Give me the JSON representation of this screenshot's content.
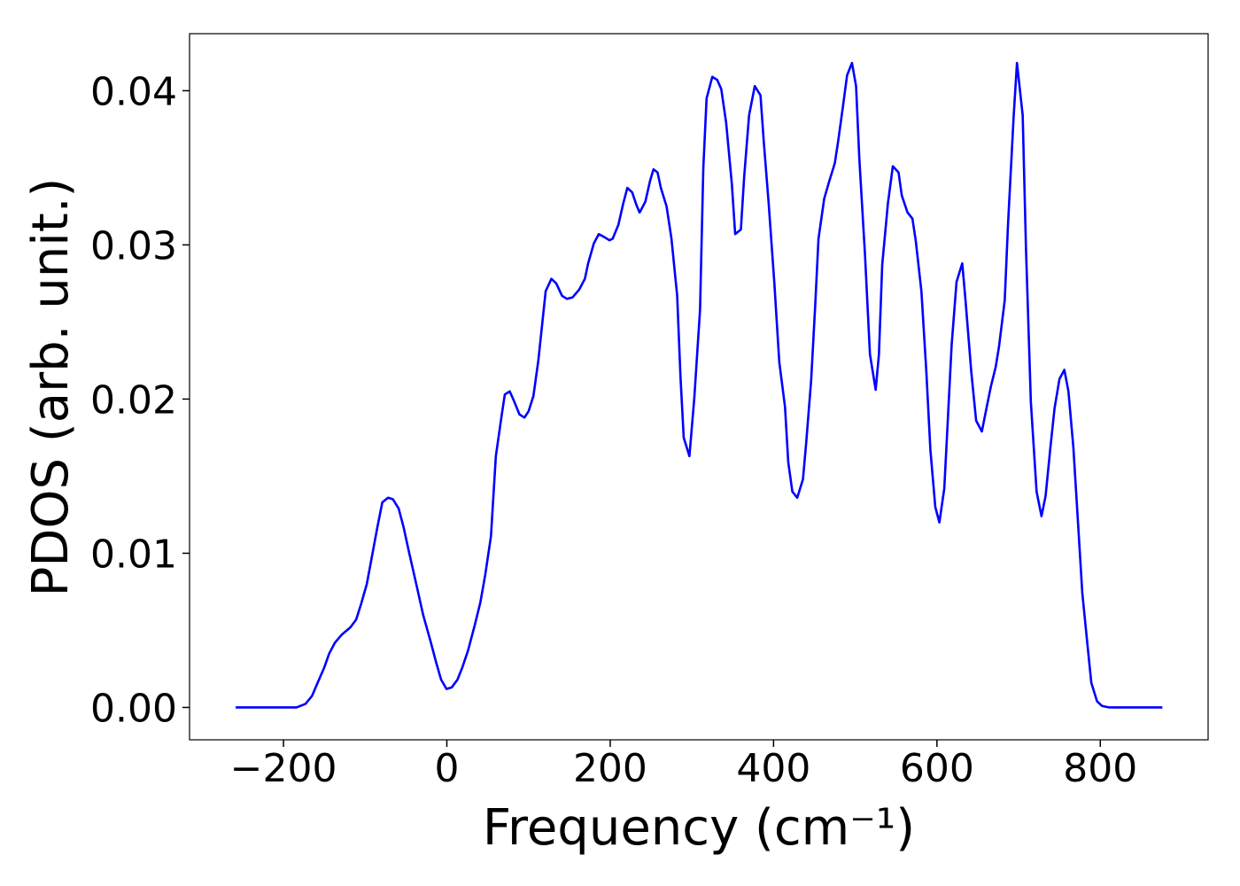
{
  "chart_data": {
    "type": "line",
    "xlabel": "Frequency (cm⁻¹)",
    "ylabel": "PDOS (arb. unit.)",
    "xlim": [
      -315,
      932
    ],
    "ylim": [
      -0.0021,
      0.0437
    ],
    "xticks": [
      {
        "value": -200,
        "label": "−200"
      },
      0,
      200,
      400,
      600,
      800
    ],
    "yticks": [
      {
        "value": 0,
        "label": "0.00"
      },
      0.01,
      0.02,
      0.03,
      0.04
    ],
    "grid": false,
    "x": [
      -258.6,
      -184,
      -173,
      -165,
      -159,
      -150,
      -144,
      -137,
      -129,
      -118,
      -111,
      -105,
      -98,
      -92,
      -85,
      -79,
      -72,
      -66,
      -59,
      -53,
      -46,
      -37,
      -29,
      -20,
      -13,
      -7,
      -0.4,
      6,
      13,
      19,
      26,
      34,
      41,
      47,
      54,
      60,
      67,
      71,
      77,
      82,
      89,
      95,
      100,
      106,
      112,
      121,
      128,
      134,
      141,
      147,
      154,
      162,
      169,
      173,
      180,
      186,
      193,
      199,
      203,
      210,
      216,
      221,
      227,
      232,
      236,
      243,
      249,
      253,
      258,
      262,
      269,
      275,
      282,
      286,
      290,
      297,
      303,
      310,
      314,
      318,
      325,
      331,
      336,
      342,
      349,
      353,
      360,
      364,
      370,
      377,
      384,
      388,
      394,
      401,
      407,
      414,
      418,
      423,
      429,
      436,
      440,
      446,
      451,
      455,
      462,
      468,
      475,
      479,
      485,
      490,
      496,
      501,
      505,
      512,
      518,
      525,
      529,
      533,
      540,
      546,
      553,
      557,
      564,
      570,
      574,
      581,
      587,
      592,
      598,
      603,
      609,
      613,
      618,
      624,
      631,
      635,
      642,
      648,
      655,
      661,
      666,
      672,
      676,
      683,
      687,
      694,
      698,
      705,
      709,
      715,
      722,
      728,
      733,
      739,
      744,
      750,
      756,
      761,
      767,
      772,
      778,
      785,
      789,
      796,
      802,
      811,
      876
    ],
    "series": [
      {
        "color": "#0000ff",
        "values": [
          0,
          0,
          0.00023,
          0.00075,
          0.0015,
          0.0026,
          0.0035,
          0.0042,
          0.0047,
          0.0052,
          0.0057,
          0.0067,
          0.008,
          0.0097,
          0.0117,
          0.0133,
          0.0136,
          0.0135,
          0.0129,
          0.0117,
          0.01,
          0.0079,
          0.006,
          0.0043,
          0.0029,
          0.0018,
          0.0012,
          0.0013,
          0.0018,
          0.0026,
          0.0037,
          0.0053,
          0.0068,
          0.0086,
          0.0111,
          0.0163,
          0.0189,
          0.0203,
          0.0205,
          0.0199,
          0.019,
          0.0188,
          0.0192,
          0.0202,
          0.0225,
          0.027,
          0.0278,
          0.0275,
          0.0267,
          0.0265,
          0.0266,
          0.0271,
          0.0278,
          0.0288,
          0.0301,
          0.0307,
          0.0305,
          0.0303,
          0.0304,
          0.0313,
          0.0327,
          0.0337,
          0.0334,
          0.0326,
          0.0321,
          0.0328,
          0.0342,
          0.0349,
          0.0347,
          0.0337,
          0.0325,
          0.0304,
          0.0267,
          0.0215,
          0.0175,
          0.0163,
          0.0201,
          0.0258,
          0.035,
          0.0395,
          0.0409,
          0.0407,
          0.0401,
          0.0379,
          0.0339,
          0.0307,
          0.031,
          0.0344,
          0.0384,
          0.0403,
          0.0397,
          0.0367,
          0.0327,
          0.0275,
          0.0224,
          0.0195,
          0.0159,
          0.014,
          0.0136,
          0.0148,
          0.0172,
          0.0212,
          0.0261,
          0.0304,
          0.033,
          0.0341,
          0.0353,
          0.0367,
          0.039,
          0.041,
          0.0418,
          0.0403,
          0.0356,
          0.0293,
          0.0229,
          0.0206,
          0.0229,
          0.0287,
          0.0327,
          0.0351,
          0.0347,
          0.0332,
          0.0321,
          0.0317,
          0.0303,
          0.027,
          0.0218,
          0.0167,
          0.013,
          0.012,
          0.0142,
          0.0183,
          0.0235,
          0.0276,
          0.0288,
          0.0264,
          0.0218,
          0.0186,
          0.0179,
          0.0195,
          0.0208,
          0.0221,
          0.0234,
          0.0264,
          0.0313,
          0.0384,
          0.0418,
          0.0384,
          0.0298,
          0.0198,
          0.014,
          0.0124,
          0.0137,
          0.0169,
          0.0194,
          0.0213,
          0.0219,
          0.0205,
          0.0169,
          0.0126,
          0.0074,
          0.0037,
          0.0016,
          0.0004,
          0.0001,
          0,
          0
        ]
      }
    ]
  }
}
